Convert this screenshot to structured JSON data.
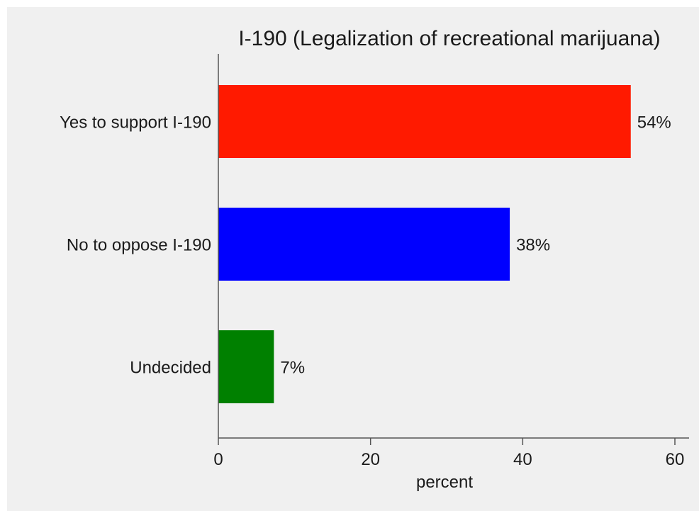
{
  "chart_data": {
    "type": "bar",
    "orientation": "horizontal",
    "title": "I-190 (Legalization of recreational marijuana)",
    "categories": [
      "Yes to support I-190",
      "No to oppose I-190",
      "Undecided"
    ],
    "values": [
      54.2,
      38.3,
      7.3
    ],
    "value_labels": [
      "54%",
      "38%",
      "7%"
    ],
    "colors": [
      "#ff1a00",
      "#0000ff",
      "#008000"
    ],
    "xlabel": "percent",
    "ylabel": "",
    "xlim": [
      0,
      62
    ],
    "xticks": [
      0,
      20,
      40,
      60
    ],
    "grid": false,
    "background": "#f0f0f0"
  }
}
